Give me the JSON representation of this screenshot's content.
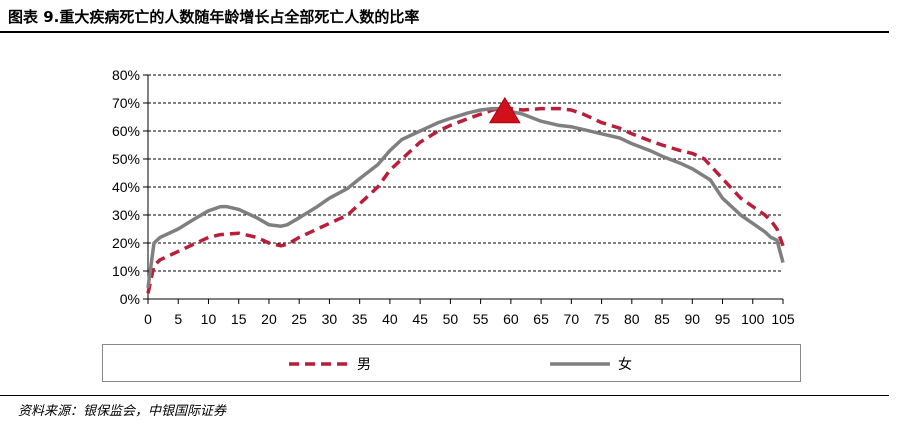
{
  "title": "图表 9.重大疾病死亡的人数随年龄增长占全部死亡人数的比率",
  "source": "资料来源：银保监会，中银国际证券",
  "colors": {
    "male": "#b81f3a",
    "female": "#7f7f7f",
    "marker": "#d0101a",
    "grid": "#000000"
  },
  "chart_data": {
    "type": "line",
    "title": "",
    "xlabel": "",
    "ylabel": "",
    "xlim": [
      0,
      105
    ],
    "ylim": [
      0,
      80
    ],
    "x_ticks": [
      0,
      5,
      10,
      15,
      20,
      25,
      30,
      35,
      40,
      45,
      50,
      55,
      60,
      65,
      70,
      75,
      80,
      85,
      90,
      95,
      100,
      105
    ],
    "y_ticks": [
      "0%",
      "10%",
      "20%",
      "30%",
      "40%",
      "50%",
      "60%",
      "70%",
      "80%"
    ],
    "y_tick_values": [
      0,
      10,
      20,
      30,
      40,
      50,
      60,
      70,
      80
    ],
    "grid": "horizontal dashed",
    "legend_position": "bottom",
    "marker": {
      "shape": "triangle",
      "x": 59,
      "y": 64
    },
    "series": [
      {
        "name": "男",
        "style": "dashed",
        "x": [
          0,
          1,
          2,
          5,
          8,
          10,
          12,
          15,
          18,
          20,
          22,
          23,
          25,
          28,
          30,
          33,
          35,
          38,
          40,
          43,
          45,
          48,
          50,
          53,
          55,
          57,
          58,
          60,
          62,
          65,
          68,
          70,
          72,
          75,
          78,
          80,
          83,
          85,
          88,
          90,
          92,
          95,
          98,
          100,
          102,
          103,
          104,
          105
        ],
        "y": [
          2,
          12,
          14,
          17,
          20,
          22,
          23,
          23.5,
          22,
          20,
          19,
          19.5,
          22,
          25,
          27,
          30,
          34,
          40,
          46,
          52,
          56,
          60,
          62,
          64.5,
          66,
          67.5,
          68,
          68,
          67.5,
          68,
          68,
          67.5,
          66,
          63,
          61,
          59,
          56.5,
          55,
          53,
          52,
          50,
          43,
          36,
          33,
          30,
          28,
          25,
          19
        ]
      },
      {
        "name": "女",
        "style": "solid",
        "x": [
          0,
          1,
          2,
          5,
          8,
          10,
          12,
          13,
          15,
          18,
          20,
          22,
          23,
          25,
          28,
          30,
          33,
          35,
          38,
          40,
          42,
          45,
          48,
          50,
          53,
          55,
          57,
          58,
          60,
          62,
          65,
          68,
          70,
          72,
          75,
          78,
          80,
          83,
          85,
          88,
          90,
          93,
          95,
          98,
          100,
          102,
          103,
          104,
          105
        ],
        "y": [
          4,
          20,
          22,
          25,
          29,
          31.5,
          33,
          33,
          32,
          29,
          26.5,
          26,
          26.5,
          29,
          33,
          36,
          39.5,
          43,
          48,
          53,
          57,
          60,
          63,
          64.5,
          66.5,
          67.5,
          68,
          68,
          67,
          66,
          63.5,
          62,
          61.5,
          60.5,
          59,
          57.5,
          55.5,
          53,
          51,
          48.5,
          46.5,
          42.5,
          36,
          30,
          27,
          24,
          22,
          21,
          13
        ]
      }
    ]
  }
}
